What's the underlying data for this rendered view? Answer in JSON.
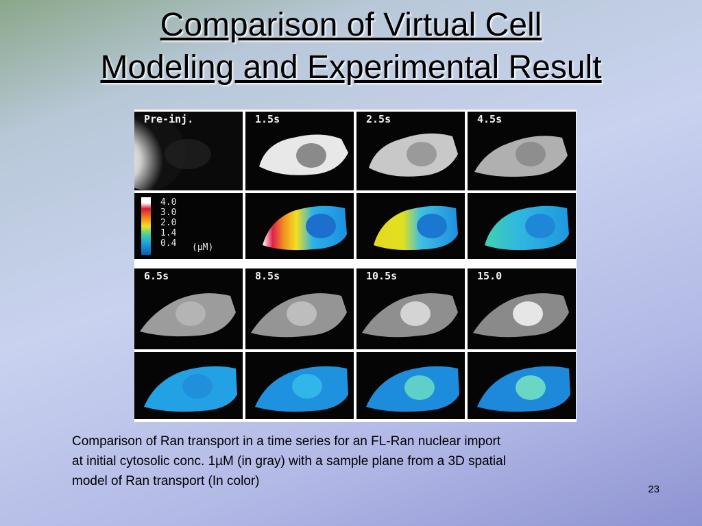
{
  "slide": {
    "title_line1": "Comparison of Virtual Cell",
    "title_line2": "Modeling and Experimental Result",
    "caption_line1": "Comparison of Ran transport in a time series for an FL-Ran nuclear import",
    "caption_line2": "at initial cytosolic conc. 1µM (in gray) with a sample plane from a 3D spatial",
    "caption_line3": "model of Ran transport  (In color)",
    "page_number": "23"
  },
  "figure": {
    "top_labels": [
      "Pre-inj.",
      "1.5s",
      "2.5s",
      "4.5s"
    ],
    "bottom_labels": [
      "6.5s",
      "8.5s",
      "10.5s",
      "15.0"
    ],
    "legend_values": [
      "4.0",
      "3.0",
      "2.0",
      "1.4",
      "0.4"
    ],
    "legend_unit": "(µM)"
  }
}
